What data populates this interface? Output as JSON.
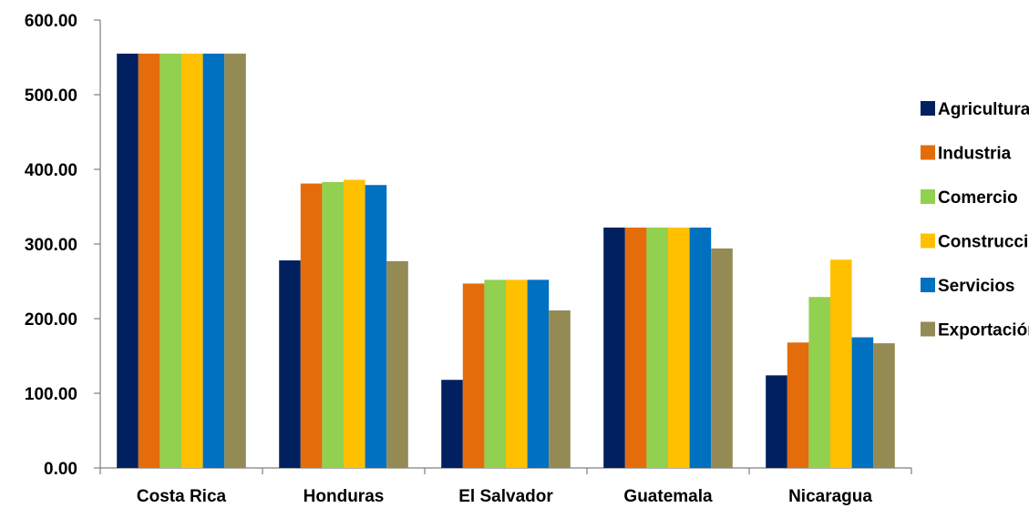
{
  "chart_data": {
    "type": "bar",
    "categories": [
      "Costa Rica",
      "Honduras",
      "El Salvador",
      "Guatemala",
      "Nicaragua"
    ],
    "series": [
      {
        "name": "Agricultura",
        "color": "#002060",
        "values": [
          555,
          278,
          118,
          322,
          124
        ]
      },
      {
        "name": "Industria",
        "color": "#E46C0A",
        "values": [
          555,
          381,
          247,
          322,
          168
        ]
      },
      {
        "name": "Comercio",
        "color": "#92D050",
        "values": [
          555,
          383,
          252,
          322,
          229
        ]
      },
      {
        "name": "Construcción",
        "color": "#FFC000",
        "values": [
          555,
          386,
          252,
          322,
          279
        ]
      },
      {
        "name": "Servicios",
        "color": "#0070C0",
        "values": [
          555,
          379,
          252,
          322,
          175
        ]
      },
      {
        "name": "Exportación",
        "color": "#948A54",
        "values": [
          555,
          277,
          211,
          294,
          167
        ]
      }
    ],
    "y_ticks": [
      "0.00",
      "100.00",
      "200.00",
      "300.00",
      "400.00",
      "500.00",
      "600.00"
    ],
    "ylim": [
      0,
      600
    ],
    "grid": false,
    "legend_position": "right",
    "title": "",
    "xlabel": "",
    "ylabel": ""
  }
}
